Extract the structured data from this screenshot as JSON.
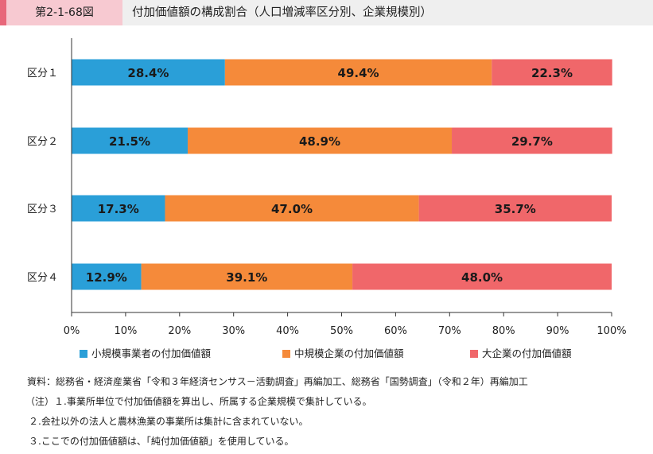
{
  "header": {
    "figure_no": "第2-1-68図",
    "title": "付加価値額の構成割合（人口増減率区分別、企業規模別）"
  },
  "colors": {
    "small": "#2a9fd8",
    "medium": "#f58a3a",
    "large": "#f0676a",
    "accent": "#e8677a",
    "badge": "#f7c9d1"
  },
  "chart_data": {
    "type": "bar",
    "orientation": "horizontal",
    "stacked": true,
    "categories": [
      "区分１",
      "区分２",
      "区分３",
      "区分４"
    ],
    "series": [
      {
        "name": "小規模事業者の付加価値額",
        "values": [
          28.4,
          21.5,
          17.3,
          12.9
        ],
        "labels": [
          "28.4%",
          "21.5%",
          "17.3%",
          "12.9%"
        ]
      },
      {
        "name": "中規模企業の付加価値額",
        "values": [
          49.4,
          48.9,
          47.0,
          39.1
        ],
        "labels": [
          "49.4%",
          "48.9%",
          "47.0%",
          "39.1%"
        ]
      },
      {
        "name": "大企業の付加価値額",
        "values": [
          22.3,
          29.7,
          35.7,
          48.0
        ],
        "labels": [
          "22.3%",
          "29.7%",
          "35.7%",
          "48.0%"
        ]
      }
    ],
    "xlim": [
      0,
      100
    ],
    "xticks": [
      "0%",
      "10%",
      "20%",
      "30%",
      "40%",
      "50%",
      "60%",
      "70%",
      "80%",
      "90%",
      "100%"
    ],
    "grid": false,
    "legend_position": "bottom"
  },
  "notes": [
    "資料：総務省・経済産業省「令和３年経済センサス－活動調査」再編加工、総務省「国勢調査」（令和２年）再編加工",
    "（注）１.事業所単位で付加価値額を算出し、所属する企業規模で集計している。",
    "２.会社以外の法人と農林漁業の事業所は集計に含まれていない。",
    "３.ここでの付加価値額は、「純付加価値額」を使用している。"
  ]
}
